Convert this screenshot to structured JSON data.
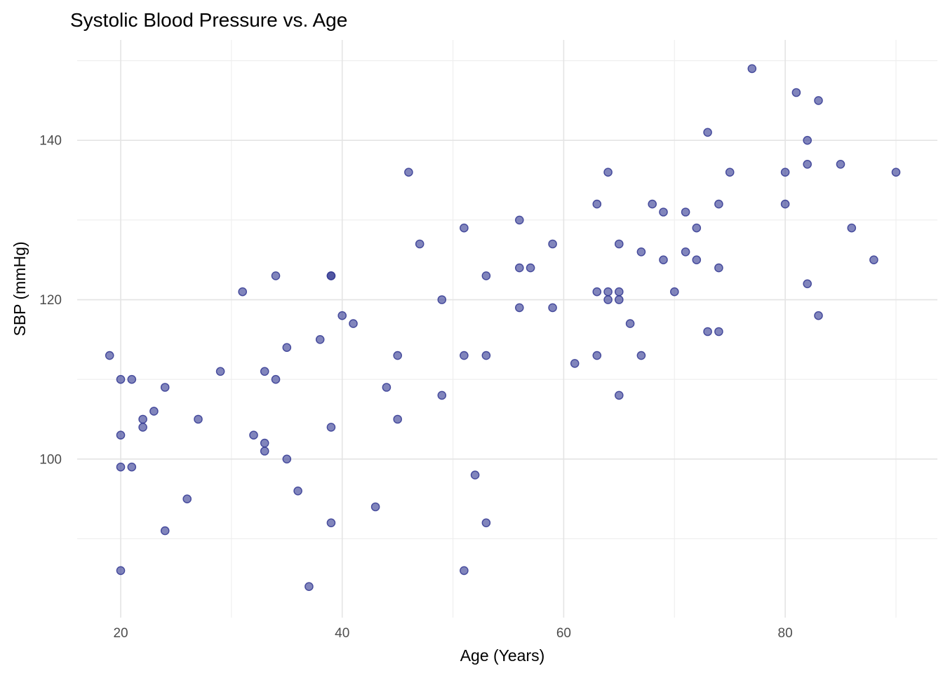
{
  "chart_data": {
    "type": "scatter",
    "title": "Systolic Blood Pressure vs. Age",
    "xlabel": "Age (Years)",
    "ylabel": "SBP (mmHg)",
    "x_ticks": [
      20,
      40,
      60,
      80
    ],
    "y_ticks": [
      100,
      120,
      140
    ],
    "x_minor_gridlines": [
      30,
      50,
      70,
      90
    ],
    "y_minor_gridlines": [
      90,
      110,
      130,
      150
    ],
    "xlim": [
      16.07,
      93.74
    ],
    "ylim": [
      80.1,
      152.6
    ],
    "grid": "major-and-minor",
    "legend_position": "none",
    "panel_background": "#ffffff",
    "major_grid_color": "#e4e4e4",
    "minor_grid_color": "#eeeeee",
    "point_color": "#343a93",
    "point_fill_opacity": 0.62,
    "point_stroke_opacity": 0.88,
    "tick_label_color": "#4d4d4d",
    "points": [
      [
        19,
        113
      ],
      [
        20,
        110
      ],
      [
        20,
        103
      ],
      [
        20,
        99
      ],
      [
        20,
        86
      ],
      [
        21,
        110
      ],
      [
        21,
        99
      ],
      [
        22,
        105
      ],
      [
        22,
        104
      ],
      [
        23,
        106
      ],
      [
        24,
        109
      ],
      [
        24,
        91
      ],
      [
        26,
        95
      ],
      [
        27,
        105
      ],
      [
        29,
        111
      ],
      [
        31,
        121
      ],
      [
        32,
        103
      ],
      [
        33,
        111
      ],
      [
        33,
        102
      ],
      [
        33,
        101
      ],
      [
        34,
        123
      ],
      [
        34,
        110
      ],
      [
        35,
        114
      ],
      [
        35,
        100
      ],
      [
        36,
        96
      ],
      [
        37,
        84
      ],
      [
        38,
        115
      ],
      [
        39,
        123
      ],
      [
        39,
        123
      ],
      [
        39,
        104
      ],
      [
        39,
        92
      ],
      [
        40,
        118
      ],
      [
        41,
        117
      ],
      [
        43,
        94
      ],
      [
        44,
        109
      ],
      [
        45,
        113
      ],
      [
        45,
        105
      ],
      [
        46,
        136
      ],
      [
        47,
        127
      ],
      [
        49,
        120
      ],
      [
        49,
        108
      ],
      [
        51,
        129
      ],
      [
        51,
        113
      ],
      [
        51,
        86
      ],
      [
        52,
        98
      ],
      [
        53,
        123
      ],
      [
        53,
        113
      ],
      [
        53,
        92
      ],
      [
        56,
        130
      ],
      [
        56,
        124
      ],
      [
        56,
        119
      ],
      [
        57,
        124
      ],
      [
        59,
        127
      ],
      [
        59,
        119
      ],
      [
        61,
        112
      ],
      [
        63,
        132
      ],
      [
        63,
        121
      ],
      [
        63,
        113
      ],
      [
        64,
        136
      ],
      [
        64,
        121
      ],
      [
        64,
        120
      ],
      [
        65,
        127
      ],
      [
        65,
        121
      ],
      [
        65,
        120
      ],
      [
        65,
        108
      ],
      [
        66,
        117
      ],
      [
        67,
        126
      ],
      [
        67,
        113
      ],
      [
        68,
        132
      ],
      [
        69,
        131
      ],
      [
        69,
        125
      ],
      [
        70,
        121
      ],
      [
        71,
        131
      ],
      [
        71,
        126
      ],
      [
        72,
        129
      ],
      [
        72,
        125
      ],
      [
        73,
        141
      ],
      [
        73,
        116
      ],
      [
        74,
        132
      ],
      [
        74,
        124
      ],
      [
        74,
        116
      ],
      [
        75,
        136
      ],
      [
        77,
        149
      ],
      [
        80,
        136
      ],
      [
        80,
        132
      ],
      [
        81,
        146
      ],
      [
        82,
        140
      ],
      [
        82,
        137
      ],
      [
        82,
        122
      ],
      [
        83,
        145
      ],
      [
        83,
        118
      ],
      [
        85,
        137
      ],
      [
        86,
        129
      ],
      [
        88,
        125
      ],
      [
        90,
        136
      ]
    ]
  }
}
